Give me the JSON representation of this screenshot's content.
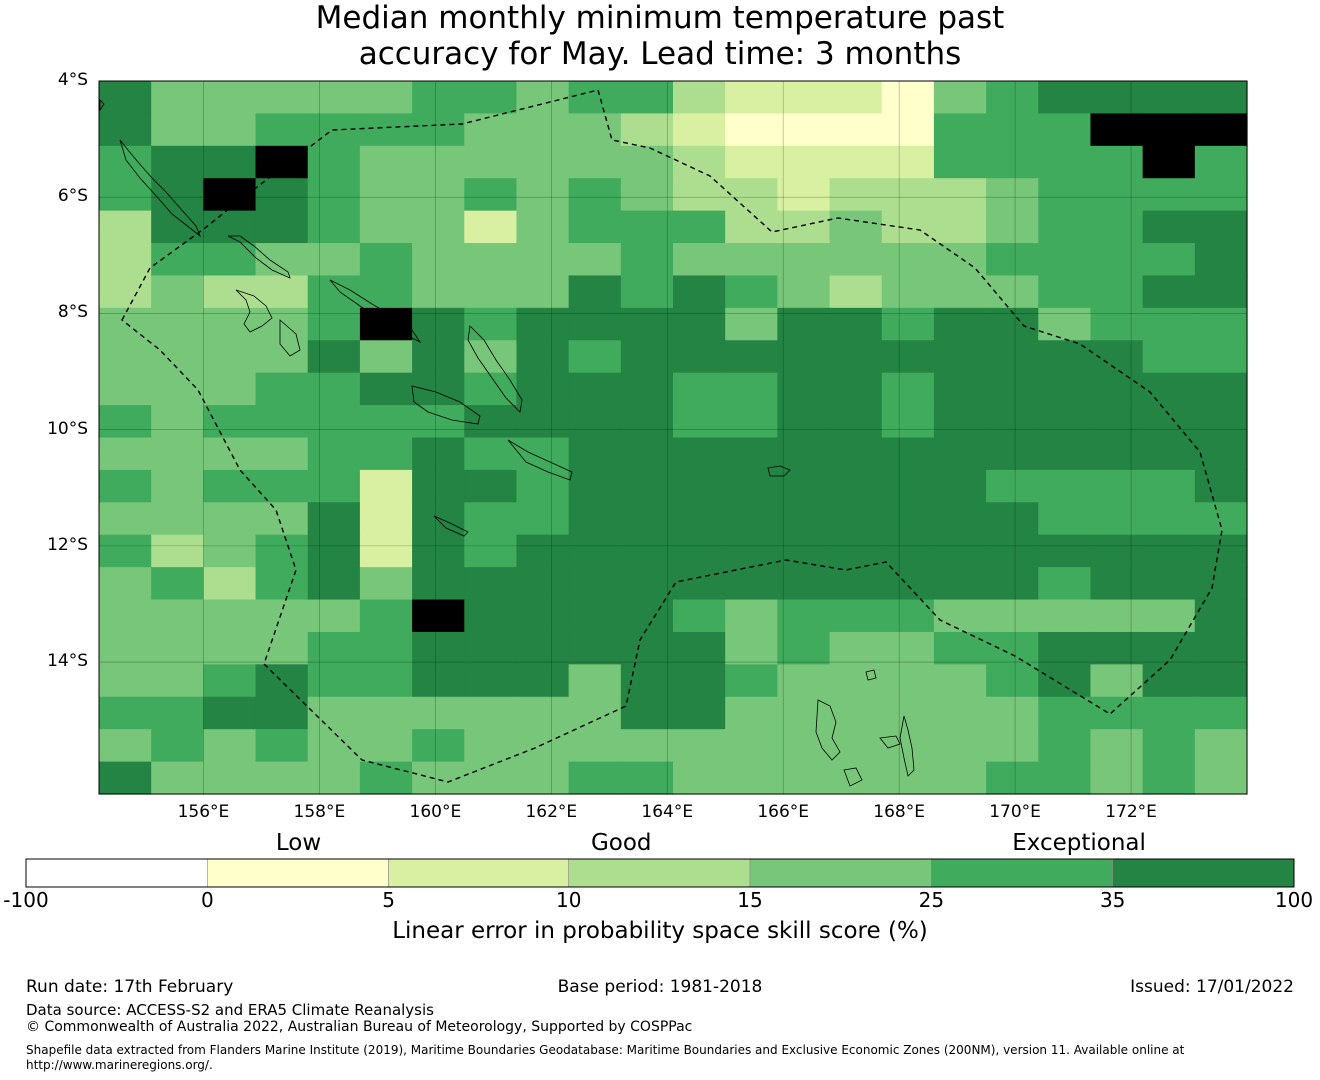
{
  "title": {
    "line1": "Median monthly minimum temperature past",
    "line2": "accuracy for May. Lead time: 3 months"
  },
  "map": {
    "lat_labels": [
      "4°S",
      "6°S",
      "8°S",
      "10°S",
      "12°S",
      "14°S"
    ],
    "lon_labels": [
      "156°E",
      "158°E",
      "160°E",
      "162°E",
      "164°E",
      "166°E",
      "168°E",
      "170°E",
      "172°E"
    ],
    "lon_range": [
      154.2,
      174.0
    ],
    "lat_range": [
      -16.3,
      -4.0
    ],
    "grid_resolution_deg": 0.83
  },
  "colorbar": {
    "category_labels": {
      "low": "Low",
      "good": "Good",
      "exceptional": "Exceptional"
    },
    "tick_labels": [
      "-100",
      "0",
      "5",
      "10",
      "15",
      "25",
      "35",
      "100"
    ],
    "colors": [
      "#ffffff",
      "#ffffcc",
      "#d9f0a3",
      "#addd8e",
      "#78c679",
      "#41ab5d",
      "#238443"
    ],
    "title": "Linear error in probability space skill score (%)"
  },
  "footer": {
    "run_date": "Run date: 17th February",
    "base_period": "Base period: 1981-2018",
    "issued": "Issued: 17/01/2022",
    "data_source": "Data source: ACCESS-S2 and ERA5 Climate Reanalysis",
    "copyright": "© Commonwealth of Australia 2022, Australian Bureau of Meteorology, Supported by COSPPac",
    "shapefile_line1": "Shapefile data extracted from Flanders Marine Institute (2019), Maritime Boundaries Geodatabase: Maritime Boundaries and Exclusive Economic Zones (200NM), version 11. Available online at",
    "shapefile_line2": "http://www.marineregions.org/."
  },
  "grid_cells": [
    "6444445545532221456666",
    "6445555444321111555777",
    "5667544444432222555575",
    "5676544545433233345555",
    "3666544245553343345566",
    "3554454444544444455556",
    "3433554446565434445566",
    "4444576566664665664555",
    "4444646465666666666655",
    "4445566566655665666666",
    "5455555666655665666666",
    "4444556556666666666666",
    "5455526656666666655556",
    "4444626556666666665555",
    "5345626566666666666666",
    "4535646666666666665666",
    "4444457666654555444446",
    "4444556666664544556666",
    "4456556664665444456466",
    "5566444444664444445555",
    "4545445444444444445454",
    "6444454445544444455454"
  ],
  "lat_label_y_fraction": [
    0.0,
    0.163,
    0.326,
    0.489,
    0.652,
    0.815
  ],
  "lon_label_x_fraction": [
    0.091,
    0.192,
    0.293,
    0.394,
    0.495,
    0.596,
    0.697,
    0.798,
    0.899
  ],
  "category_label_x_fraction": {
    "low": 0.216,
    "good": 0.47,
    "exceptional": 0.833
  },
  "cb_tick_x_fraction": [
    0.0,
    0.143,
    0.286,
    0.428,
    0.571,
    0.714,
    0.857,
    1.0
  ]
}
